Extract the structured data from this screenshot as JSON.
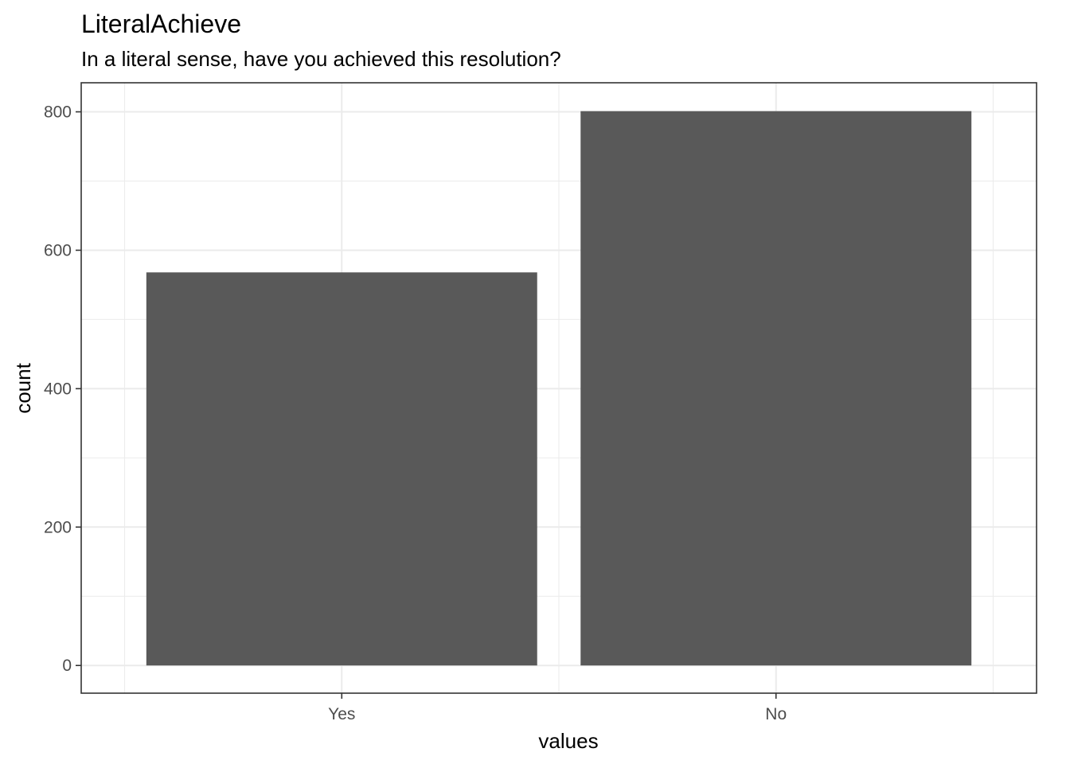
{
  "chart_data": {
    "type": "bar",
    "title": "LiteralAchieve",
    "subtitle": "In a literal sense, have you achieved this resolution?",
    "xlabel": "values",
    "ylabel": "count",
    "categories": [
      "Yes",
      "No"
    ],
    "values": [
      568,
      801
    ],
    "ylim": [
      -40,
      842
    ],
    "yticks": [
      0,
      200,
      400,
      600,
      800
    ],
    "ytick_labels": [
      "0",
      "200",
      "400",
      "600",
      "800"
    ],
    "grid": true,
    "bar_color": "#595959",
    "grid_color": "#ebebeb",
    "panel_border_color": "#333333"
  }
}
